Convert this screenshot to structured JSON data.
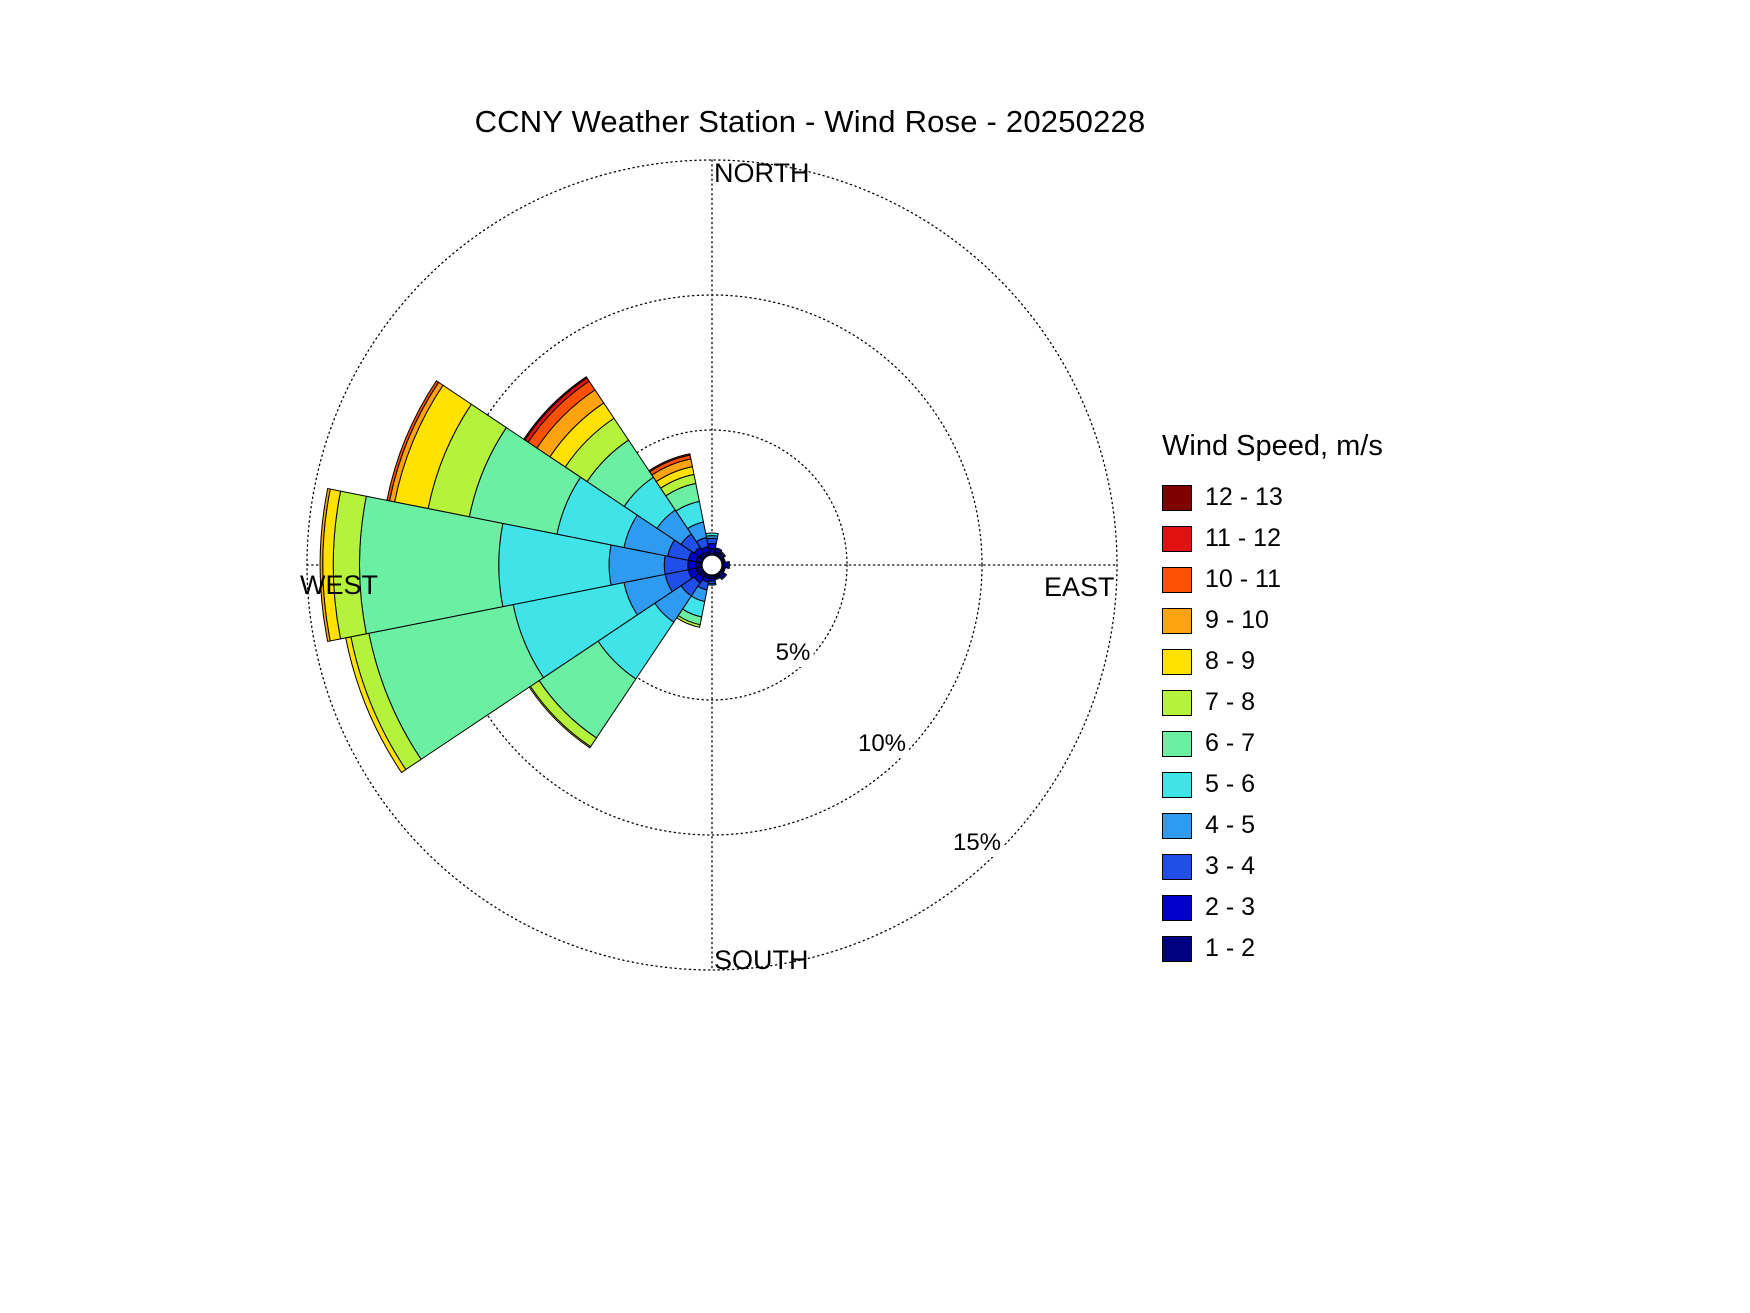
{
  "page": {
    "background": "#ffffff"
  },
  "title": "CCNY Weather Station - Wind Rose - 20250228",
  "compass": {
    "north": "NORTH",
    "east": "EAST",
    "south": "SOUTH",
    "west": "WEST"
  },
  "legend": {
    "title": "Wind Speed, m/s"
  },
  "chart_data": {
    "type": "windrose",
    "title": "CCNY Weather Station - Wind Rose - 20250228",
    "units": "m/s",
    "radial_axis": "frequency_percent",
    "rlim_pct": [
      0,
      15
    ],
    "ring_ticks_pct": [
      5,
      10,
      15
    ],
    "ring_tick_labels": [
      "5%",
      "10%",
      "15%"
    ],
    "grid": "dotted",
    "legend_position": "right",
    "legend_order": "fastest_bin_on_top",
    "speed_bins": [
      {
        "label": "1 - 2",
        "color": "#000082"
      },
      {
        "label": "2 - 3",
        "color": "#0000CD"
      },
      {
        "label": "3 - 4",
        "color": "#1F4FE8"
      },
      {
        "label": "4 - 5",
        "color": "#2E9BF0"
      },
      {
        "label": "5 - 6",
        "color": "#3FE3E8"
      },
      {
        "label": "6 - 7",
        "color": "#6AEFA3"
      },
      {
        "label": "7 - 8",
        "color": "#B4F23C"
      },
      {
        "label": "8 - 9",
        "color": "#FFE200"
      },
      {
        "label": "9 - 10",
        "color": "#FFA310"
      },
      {
        "label": "10 - 11",
        "color": "#FF4F00"
      },
      {
        "label": "11 - 12",
        "color": "#E31212"
      },
      {
        "label": "12 - 13",
        "color": "#7F0000"
      }
    ],
    "directions": [
      {
        "dir": "N",
        "angle_deg": 0,
        "by_speed_bin_pct": [
          0.2,
          0.2,
          0.2,
          0.1,
          0.1,
          0,
          0,
          0,
          0,
          0,
          0,
          0
        ]
      },
      {
        "dir": "NNE",
        "angle_deg": 22.5,
        "by_speed_bin_pct": [
          0.1,
          0.1,
          0.05,
          0,
          0,
          0,
          0,
          0,
          0,
          0,
          0,
          0
        ]
      },
      {
        "dir": "NE",
        "angle_deg": 45,
        "by_speed_bin_pct": [
          0.1,
          0.05,
          0.05,
          0,
          0,
          0,
          0,
          0,
          0,
          0,
          0,
          0
        ]
      },
      {
        "dir": "ENE",
        "angle_deg": 67.5,
        "by_speed_bin_pct": [
          0.05,
          0.05,
          0,
          0,
          0,
          0,
          0,
          0,
          0,
          0,
          0,
          0
        ]
      },
      {
        "dir": "E",
        "angle_deg": 90,
        "by_speed_bin_pct": [
          0.1,
          0.1,
          0.05,
          0,
          0,
          0,
          0,
          0,
          0,
          0,
          0,
          0
        ]
      },
      {
        "dir": "ESE",
        "angle_deg": 112.5,
        "by_speed_bin_pct": [
          0.05,
          0.05,
          0,
          0,
          0,
          0,
          0,
          0,
          0,
          0,
          0,
          0
        ]
      },
      {
        "dir": "SE",
        "angle_deg": 135,
        "by_speed_bin_pct": [
          0.1,
          0.1,
          0.05,
          0,
          0,
          0,
          0,
          0,
          0,
          0,
          0,
          0
        ]
      },
      {
        "dir": "SSE",
        "angle_deg": 157.5,
        "by_speed_bin_pct": [
          0.05,
          0.05,
          0.05,
          0,
          0,
          0,
          0,
          0,
          0,
          0,
          0,
          0
        ]
      },
      {
        "dir": "S",
        "angle_deg": 180,
        "by_speed_bin_pct": [
          0.1,
          0.1,
          0.1,
          0.05,
          0,
          0,
          0,
          0,
          0,
          0,
          0,
          0
        ]
      },
      {
        "dir": "SSW",
        "angle_deg": 202.5,
        "by_speed_bin_pct": [
          0.1,
          0.15,
          0.3,
          0.45,
          0.6,
          0.3,
          0.1,
          0,
          0,
          0,
          0,
          0
        ]
      },
      {
        "dir": "SW",
        "angle_deg": 225,
        "by_speed_bin_pct": [
          0.15,
          0.25,
          0.6,
          1.2,
          2.6,
          2.7,
          0.4,
          0.05,
          0,
          0,
          0,
          0
        ]
      },
      {
        "dir": "WSW",
        "angle_deg": 247.5,
        "by_speed_bin_pct": [
          0.2,
          0.3,
          0.9,
          1.6,
          4.3,
          5.6,
          0.7,
          0.2,
          0,
          0,
          0,
          0
        ]
      },
      {
        "dir": "W",
        "angle_deg": 270,
        "by_speed_bin_pct": [
          0.2,
          0.3,
          0.9,
          2.1,
          4.2,
          5.3,
          1.0,
          0.4,
          0.1,
          0,
          0,
          0
        ]
      },
      {
        "dir": "WNW",
        "angle_deg": 292.5,
        "by_speed_bin_pct": [
          0.2,
          0.3,
          0.8,
          1.7,
          2.6,
          3.4,
          1.6,
          1.3,
          0.2,
          0.1,
          0,
          0
        ]
      },
      {
        "dir": "NW",
        "angle_deg": 315,
        "by_speed_bin_pct": [
          0.15,
          0.25,
          0.6,
          1.1,
          1.5,
          1.7,
          1.0,
          0.7,
          0.6,
          0.4,
          0.15,
          0.05
        ]
      },
      {
        "dir": "NNW",
        "angle_deg": 337.5,
        "by_speed_bin_pct": [
          0.1,
          0.2,
          0.35,
          0.6,
          0.8,
          0.7,
          0.35,
          0.3,
          0.3,
          0.15,
          0.05,
          0
        ]
      }
    ]
  }
}
